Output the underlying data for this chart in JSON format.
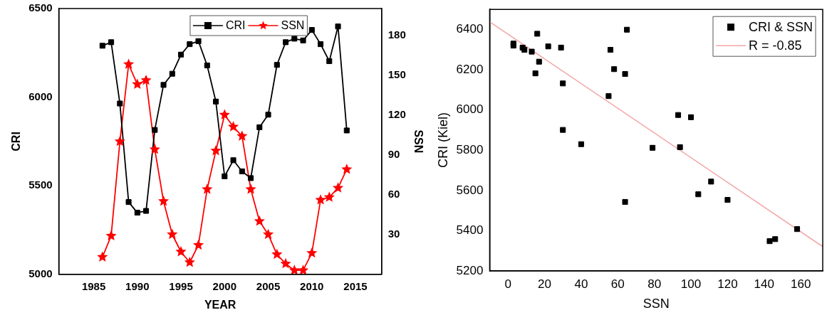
{
  "chart_data": [
    {
      "type": "line",
      "xlabel": "YEAR",
      "ylabel": "CRI",
      "y2label": "SSN",
      "x": [
        1986,
        1987,
        1988,
        1989,
        1990,
        1991,
        1992,
        1993,
        1994,
        1995,
        1996,
        1997,
        1998,
        1999,
        2000,
        2001,
        2002,
        2003,
        2004,
        2005,
        2006,
        2007,
        2008,
        2009,
        2010,
        2011,
        2012,
        2013,
        2014
      ],
      "xlim": [
        1981,
        2018
      ],
      "xticks": [
        1985,
        1990,
        1995,
        2000,
        2005,
        2010,
        2015
      ],
      "ylim": [
        5000,
        6500
      ],
      "yticks": [
        5000,
        5500,
        6000,
        6500
      ],
      "y2lim": [
        0,
        200
      ],
      "y2ticks": [
        30,
        60,
        90,
        120,
        150,
        180
      ],
      "legend": "top",
      "grid": false,
      "series": [
        {
          "name": "CRI",
          "color": "#000000",
          "marker": "square",
          "values": [
            6290,
            6310,
            5964,
            5408,
            5348,
            5358,
            5815,
            6069,
            6132,
            6240,
            6299,
            6316,
            6179,
            5975,
            5553,
            5644,
            5581,
            5543,
            5830,
            5901,
            6182,
            6310,
            6330,
            6320,
            6379,
            6299,
            6203,
            6399,
            5812
          ]
        },
        {
          "name": "SSN",
          "color": "#ff0000",
          "marker": "star",
          "axis": "y2",
          "values": [
            13,
            29,
            100,
            158,
            143,
            146,
            94,
            55,
            30,
            17,
            9,
            22,
            64,
            93,
            120,
            111,
            104,
            64,
            40,
            30,
            15,
            8,
            3,
            3,
            16,
            56,
            58,
            65,
            79
          ]
        }
      ]
    },
    {
      "type": "scatter",
      "xlabel": "SSN",
      "ylabel": "CRI (Kiel)",
      "xlim": [
        -10,
        172
      ],
      "xticks": [
        0,
        20,
        40,
        60,
        80,
        100,
        120,
        140,
        160
      ],
      "ylim": [
        5200,
        6500
      ],
      "yticks": [
        5200,
        5400,
        5600,
        5800,
        6000,
        6200,
        6400
      ],
      "legend": "top right",
      "grid": false,
      "series": [
        {
          "name": "CRI & SSN",
          "color": "#000000",
          "marker": "square",
          "x": [
            13,
            29,
            100,
            158,
            143,
            146,
            94,
            55,
            30,
            17,
            9,
            22,
            64,
            93,
            120,
            111,
            104,
            64,
            40,
            30,
            15,
            8,
            3,
            3,
            16,
            56,
            58,
            65,
            79
          ],
          "values": [
            6290,
            6310,
            5964,
            5408,
            5348,
            5358,
            5815,
            6069,
            6132,
            6240,
            6299,
            6316,
            6179,
            5975,
            5553,
            5644,
            5581,
            5543,
            5830,
            5901,
            6182,
            6310,
            6330,
            6320,
            6379,
            6299,
            6203,
            6399,
            5812
          ]
        },
        {
          "name": "R = -0.85",
          "type": "line",
          "color": "#f4a6a6",
          "marker": "none",
          "x": [
            -10,
            172
          ],
          "values": [
            6438,
            5321
          ]
        }
      ]
    }
  ]
}
